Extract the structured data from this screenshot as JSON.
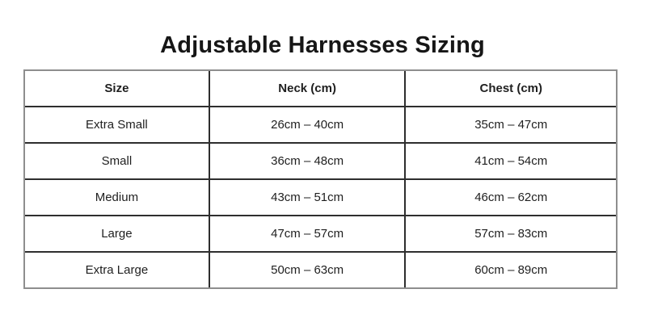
{
  "title": "Adjustable Harnesses Sizing",
  "chart_data": {
    "type": "table",
    "title": "Adjustable Harnesses Sizing",
    "columns": [
      "Size",
      "Neck (cm)",
      "Chest (cm)"
    ],
    "rows": [
      [
        "Extra Small",
        "26cm – 40cm",
        "35cm – 47cm"
      ],
      [
        "Small",
        "36cm – 48cm",
        "41cm – 54cm"
      ],
      [
        "Medium",
        "43cm – 51cm",
        "46cm – 62cm"
      ],
      [
        "Large",
        "47cm – 57cm",
        "57cm – 83cm"
      ],
      [
        "Extra Large",
        "50cm – 63cm",
        "60cm – 89cm"
      ]
    ],
    "categories": [
      "Extra Small",
      "Small",
      "Medium",
      "Large",
      "Extra Large"
    ],
    "series": [
      {
        "name": "Neck min (cm)",
        "values": [
          26,
          36,
          43,
          47,
          50
        ]
      },
      {
        "name": "Neck max (cm)",
        "values": [
          40,
          48,
          51,
          57,
          63
        ]
      },
      {
        "name": "Chest min (cm)",
        "values": [
          35,
          41,
          46,
          57,
          60
        ]
      },
      {
        "name": "Chest max (cm)",
        "values": [
          47,
          54,
          62,
          83,
          89
        ]
      }
    ],
    "layout": {
      "grid": true,
      "text_align": "center",
      "header_bold": true
    }
  },
  "colors": {
    "outer_border": "#8e8e8e",
    "inner_border": "#2e2e2e",
    "text": "#1f1f1f",
    "background": "#ffffff"
  }
}
